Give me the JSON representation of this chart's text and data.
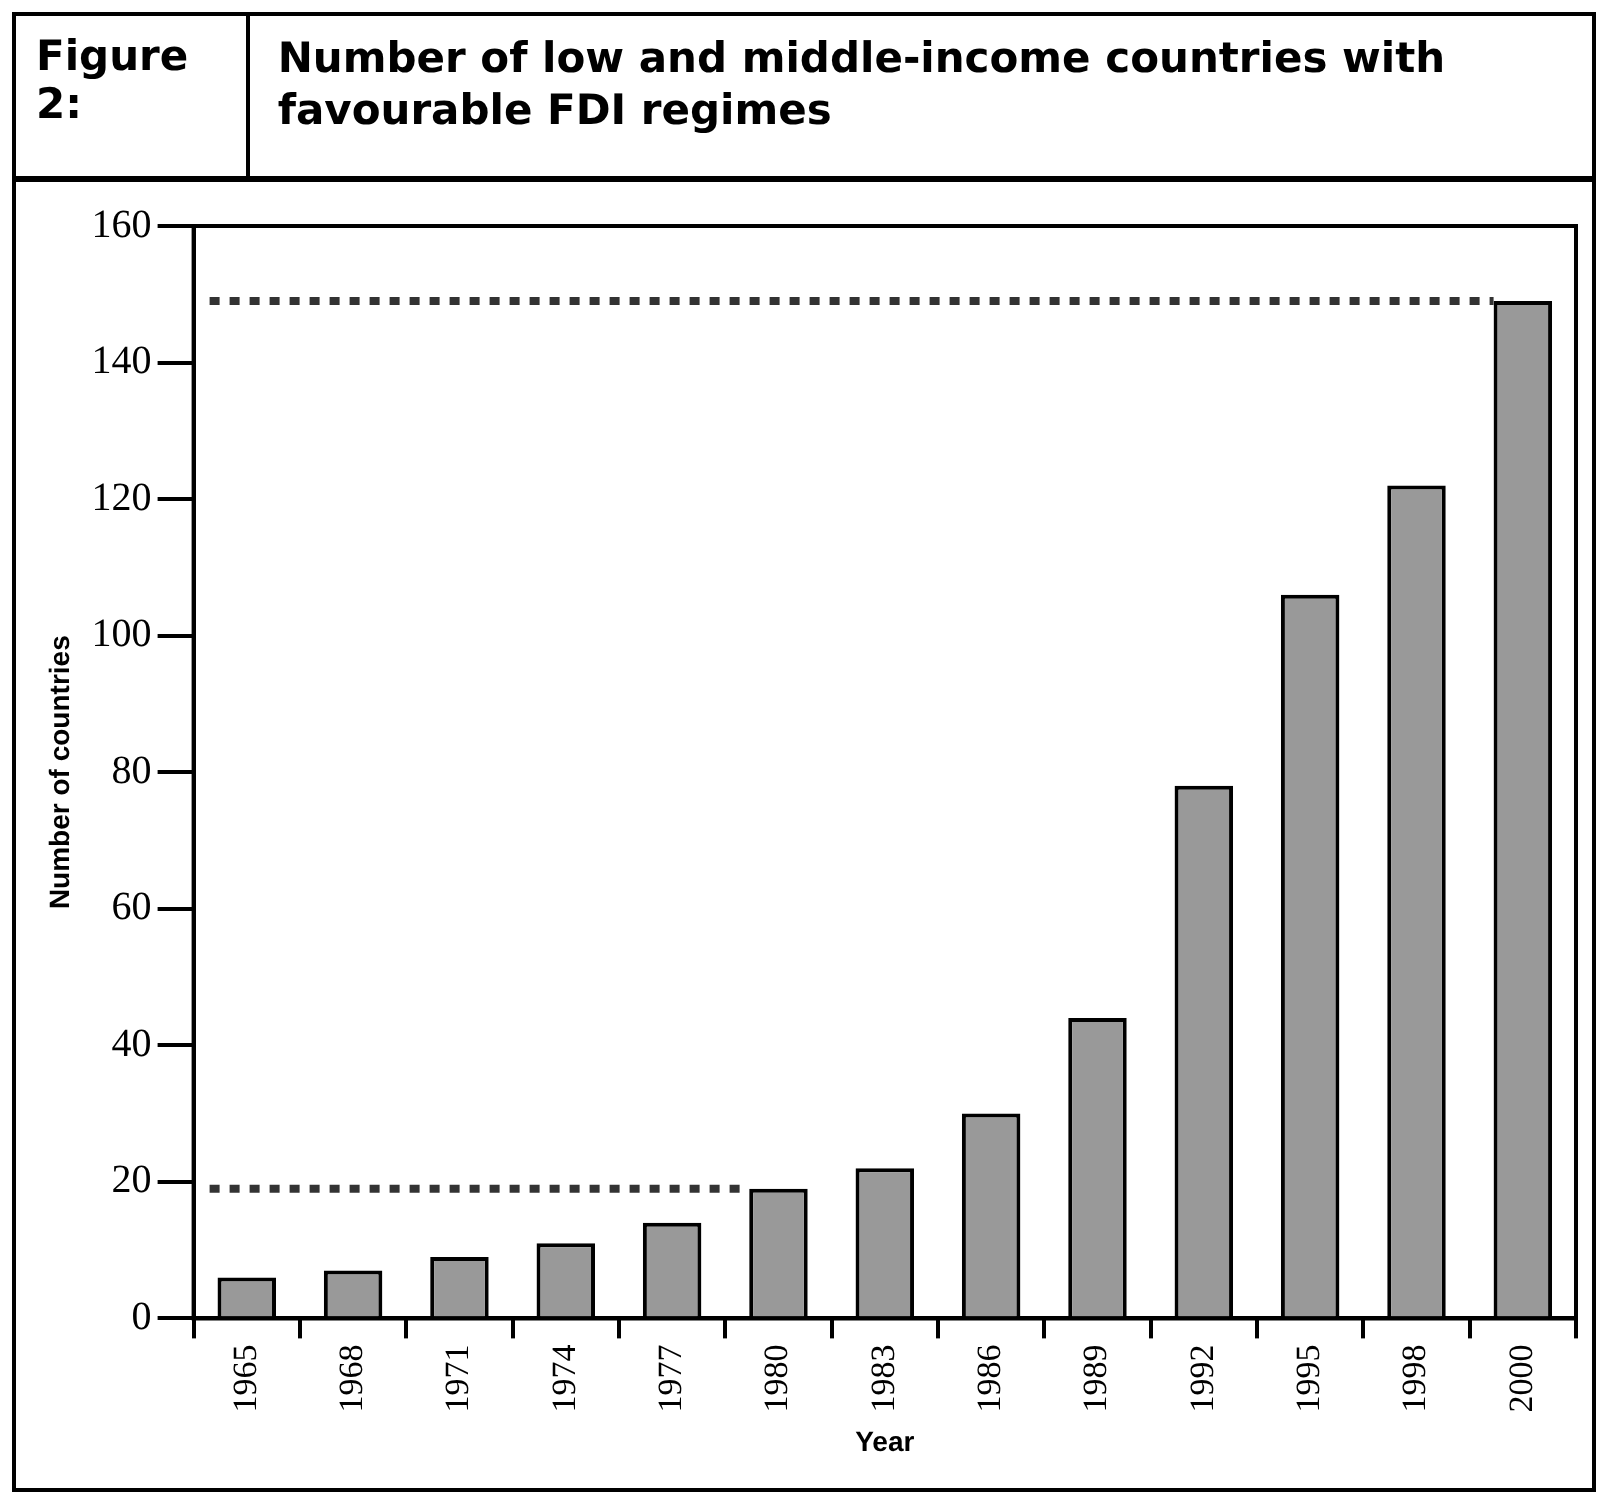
{
  "chart_data": {
    "type": "bar",
    "title": "Figure 2:",
    "subtitle": "Number of low and middle-income countries with favourable FDI regimes",
    "xlabel": "Year",
    "ylabel": "Number of countries",
    "categories": [
      "1965",
      "1968",
      "1971",
      "1974",
      "1977",
      "1980",
      "1983",
      "1986",
      "1989",
      "1992",
      "1995",
      "1998",
      "2000"
    ],
    "values": [
      6,
      7,
      9,
      11,
      14,
      19,
      22,
      30,
      44,
      78,
      106,
      122,
      149
    ],
    "color": "#999999",
    "ylim": [
      0,
      160
    ],
    "yticks": [
      0,
      20,
      40,
      60,
      80,
      100,
      120,
      140,
      160
    ],
    "ref_lines": [
      {
        "axis": "y",
        "value": 19,
        "line_style": "dotted",
        "color": "#333333"
      },
      {
        "axis": "y",
        "value": 149,
        "line_style": "dotted",
        "color": "#333333"
      }
    ],
    "grid": false,
    "legend": false
  }
}
